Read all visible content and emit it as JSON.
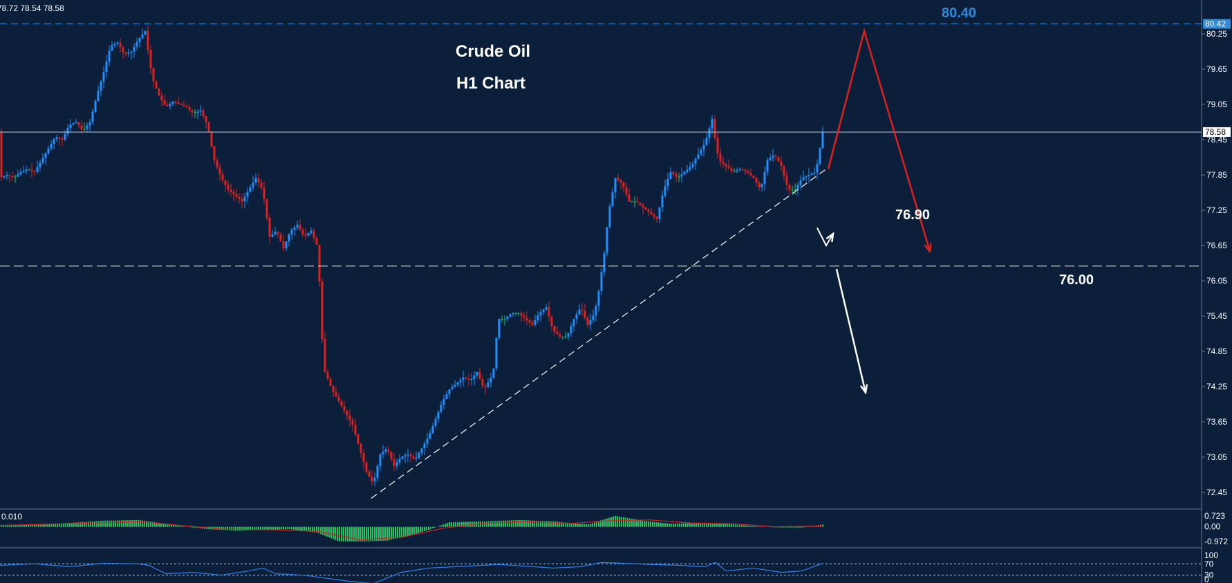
{
  "ohlc_readout": "78.72 78.54 78.58",
  "colors": {
    "background": "#0b1f3a",
    "bull": "#1e90ff",
    "bear": "#e0201e",
    "neutral": "#22c55e",
    "grid_line": "#c0c8d8",
    "target_line": "#2f8bd8",
    "forecast_up": "#e0201e",
    "forecast_down": "#ffffff",
    "histogram": "#22c55e",
    "signal": "#e0201e",
    "rsi_line": "#2f80ed"
  },
  "chart_data": {
    "type": "line",
    "instrument": "Crude Oil",
    "timeframe": "H1 Chart",
    "title": "Crude Oil",
    "subtitle": "H1 Chart",
    "ylim": [
      72.15,
      80.65
    ],
    "y_ticks": [
      "80.25",
      "79.65",
      "79.05",
      "78.45",
      "77.85",
      "77.25",
      "76.65",
      "76.05",
      "75.45",
      "74.85",
      "74.25",
      "73.65",
      "73.05",
      "72.45"
    ],
    "current_price_label": "78.58",
    "current_price": 78.58,
    "target_price_label": "80.42",
    "target_price": 80.42,
    "series": [
      {
        "points": [
          [
            0,
            77.8
          ],
          [
            10,
            77.85
          ],
          [
            20,
            77.8
          ],
          [
            30,
            77.9
          ],
          [
            40,
            77.95
          ],
          [
            50,
            77.9
          ],
          [
            60,
            78.1
          ],
          [
            70,
            78.3
          ],
          [
            80,
            78.5
          ],
          [
            90,
            78.45
          ],
          [
            100,
            78.7
          ],
          [
            110,
            78.75
          ],
          [
            120,
            78.6
          ],
          [
            130,
            78.75
          ],
          [
            140,
            79.2
          ],
          [
            150,
            79.6
          ],
          [
            160,
            80.05
          ],
          [
            170,
            80.1
          ],
          [
            180,
            79.9
          ],
          [
            190,
            79.95
          ],
          [
            200,
            80.15
          ],
          [
            210,
            80.3
          ],
          [
            215,
            79.9
          ],
          [
            220,
            79.5
          ],
          [
            230,
            79.2
          ],
          [
            240,
            79.0
          ],
          [
            250,
            79.1
          ],
          [
            260,
            79.05
          ],
          [
            270,
            79.0
          ],
          [
            280,
            78.9
          ],
          [
            290,
            78.95
          ],
          [
            300,
            78.7
          ],
          [
            310,
            78.1
          ],
          [
            320,
            77.8
          ],
          [
            330,
            77.6
          ],
          [
            340,
            77.5
          ],
          [
            350,
            77.4
          ],
          [
            360,
            77.6
          ],
          [
            370,
            77.8
          ],
          [
            380,
            77.6
          ],
          [
            390,
            76.8
          ],
          [
            400,
            76.9
          ],
          [
            410,
            76.6
          ],
          [
            420,
            76.9
          ],
          [
            430,
            77.0
          ],
          [
            440,
            76.8
          ],
          [
            450,
            76.9
          ],
          [
            460,
            76.6
          ],
          [
            465,
            75.2
          ],
          [
            470,
            74.5
          ],
          [
            480,
            74.2
          ],
          [
            490,
            74.0
          ],
          [
            500,
            73.8
          ],
          [
            510,
            73.6
          ],
          [
            520,
            73.2
          ],
          [
            530,
            72.8
          ],
          [
            540,
            72.6
          ],
          [
            550,
            73.1
          ],
          [
            560,
            73.2
          ],
          [
            570,
            72.9
          ],
          [
            580,
            73.05
          ],
          [
            590,
            73.1
          ],
          [
            600,
            73.0
          ],
          [
            610,
            73.2
          ],
          [
            620,
            73.4
          ],
          [
            630,
            73.7
          ],
          [
            640,
            74.0
          ],
          [
            650,
            74.2
          ],
          [
            660,
            74.3
          ],
          [
            670,
            74.4
          ],
          [
            680,
            74.35
          ],
          [
            690,
            74.5
          ],
          [
            700,
            74.2
          ],
          [
            710,
            74.4
          ],
          [
            715,
            74.6
          ],
          [
            720,
            75.4
          ],
          [
            730,
            75.4
          ],
          [
            740,
            75.5
          ],
          [
            750,
            75.5
          ],
          [
            760,
            75.4
          ],
          [
            770,
            75.3
          ],
          [
            780,
            75.5
          ],
          [
            790,
            75.6
          ],
          [
            800,
            75.2
          ],
          [
            810,
            75.1
          ],
          [
            820,
            75.1
          ],
          [
            830,
            75.4
          ],
          [
            840,
            75.6
          ],
          [
            850,
            75.3
          ],
          [
            860,
            75.5
          ],
          [
            865,
            75.8
          ],
          [
            870,
            76.2
          ],
          [
            875,
            76.6
          ],
          [
            880,
            77.2
          ],
          [
            890,
            77.8
          ],
          [
            900,
            77.7
          ],
          [
            910,
            77.4
          ],
          [
            920,
            77.4
          ],
          [
            930,
            77.3
          ],
          [
            940,
            77.2
          ],
          [
            950,
            77.1
          ],
          [
            960,
            77.6
          ],
          [
            970,
            77.9
          ],
          [
            980,
            77.8
          ],
          [
            990,
            77.9
          ],
          [
            1000,
            78.0
          ],
          [
            1010,
            78.2
          ],
          [
            1020,
            78.4
          ],
          [
            1030,
            78.8
          ],
          [
            1035,
            78.4
          ],
          [
            1040,
            78.1
          ],
          [
            1050,
            78.0
          ],
          [
            1060,
            77.9
          ],
          [
            1070,
            77.95
          ],
          [
            1080,
            77.9
          ],
          [
            1090,
            77.8
          ],
          [
            1100,
            77.6
          ],
          [
            1110,
            78.1
          ],
          [
            1120,
            78.2
          ],
          [
            1130,
            78.0
          ],
          [
            1140,
            77.6
          ],
          [
            1150,
            77.6
          ],
          [
            1160,
            77.8
          ],
          [
            1170,
            77.85
          ],
          [
            1180,
            77.9
          ],
          [
            1190,
            78.58
          ]
        ]
      }
    ],
    "trendline": [
      [
        537,
        72.35
      ],
      [
        1195,
        77.95
      ]
    ],
    "support_level": 76.3,
    "annotations": {
      "target": "80.40",
      "support": "76.90",
      "level": "76.00"
    },
    "forecast_up": [
      [
        1198,
        77.95
      ],
      [
        1250,
        80.3
      ],
      [
        1345,
        76.55
      ]
    ],
    "forecast_down": [
      [
        1210,
        76.25
      ],
      [
        1252,
        74.15
      ]
    ],
    "forecast_bounce": [
      [
        1182,
        76.95
      ],
      [
        1195,
        76.65
      ],
      [
        1205,
        76.85
      ]
    ],
    "macd": {
      "ticks": [
        "0.723",
        "0.00",
        "-0.972"
      ],
      "range": [
        -1.1,
        0.85
      ],
      "corner_label": "0.010",
      "histogram": [
        [
          0,
          0.1
        ],
        [
          50,
          0.15
        ],
        [
          100,
          0.25
        ],
        [
          150,
          0.4
        ],
        [
          200,
          0.45
        ],
        [
          240,
          0.2
        ],
        [
          270,
          0.0
        ],
        [
          300,
          -0.15
        ],
        [
          340,
          -0.25
        ],
        [
          380,
          -0.2
        ],
        [
          420,
          -0.15
        ],
        [
          460,
          -0.4
        ],
        [
          490,
          -0.95
        ],
        [
          530,
          -0.95
        ],
        [
          560,
          -0.9
        ],
        [
          590,
          -0.6
        ],
        [
          620,
          -0.2
        ],
        [
          650,
          0.3
        ],
        [
          700,
          0.35
        ],
        [
          750,
          0.45
        ],
        [
          800,
          0.35
        ],
        [
          850,
          0.15
        ],
        [
          890,
          0.72
        ],
        [
          930,
          0.4
        ],
        [
          970,
          0.2
        ],
        [
          1010,
          0.25
        ],
        [
          1050,
          0.2
        ],
        [
          1090,
          0.05
        ],
        [
          1130,
          -0.05
        ],
        [
          1160,
          -0.05
        ],
        [
          1190,
          0.15
        ]
      ],
      "signal": [
        [
          0,
          0.1
        ],
        [
          100,
          0.2
        ],
        [
          200,
          0.35
        ],
        [
          260,
          0.1
        ],
        [
          320,
          -0.15
        ],
        [
          400,
          -0.2
        ],
        [
          460,
          -0.3
        ],
        [
          520,
          -0.85
        ],
        [
          580,
          -0.7
        ],
        [
          640,
          -0.1
        ],
        [
          700,
          0.25
        ],
        [
          760,
          0.35
        ],
        [
          820,
          0.2
        ],
        [
          880,
          0.4
        ],
        [
          940,
          0.45
        ],
        [
          1000,
          0.25
        ],
        [
          1060,
          0.2
        ],
        [
          1120,
          0.0
        ],
        [
          1190,
          0.05
        ]
      ]
    },
    "rsi": {
      "ticks": [
        "100",
        "70",
        "30",
        "0"
      ],
      "range": [
        0,
        100
      ],
      "levels": [
        70,
        30
      ],
      "line": [
        [
          0,
          65
        ],
        [
          50,
          70
        ],
        [
          100,
          60
        ],
        [
          150,
          72
        ],
        [
          200,
          70
        ],
        [
          215,
          65
        ],
        [
          240,
          35
        ],
        [
          280,
          40
        ],
        [
          320,
          30
        ],
        [
          360,
          45
        ],
        [
          380,
          55
        ],
        [
          400,
          35
        ],
        [
          440,
          30
        ],
        [
          470,
          20
        ],
        [
          500,
          10
        ],
        [
          540,
          0
        ],
        [
          580,
          40
        ],
        [
          620,
          55
        ],
        [
          660,
          60
        ],
        [
          700,
          65
        ],
        [
          720,
          68
        ],
        [
          760,
          62
        ],
        [
          800,
          55
        ],
        [
          840,
          60
        ],
        [
          870,
          75
        ],
        [
          900,
          72
        ],
        [
          940,
          68
        ],
        [
          980,
          65
        ],
        [
          1020,
          60
        ],
        [
          1035,
          75
        ],
        [
          1050,
          45
        ],
        [
          1090,
          55
        ],
        [
          1130,
          40
        ],
        [
          1160,
          45
        ],
        [
          1190,
          72
        ]
      ]
    }
  }
}
